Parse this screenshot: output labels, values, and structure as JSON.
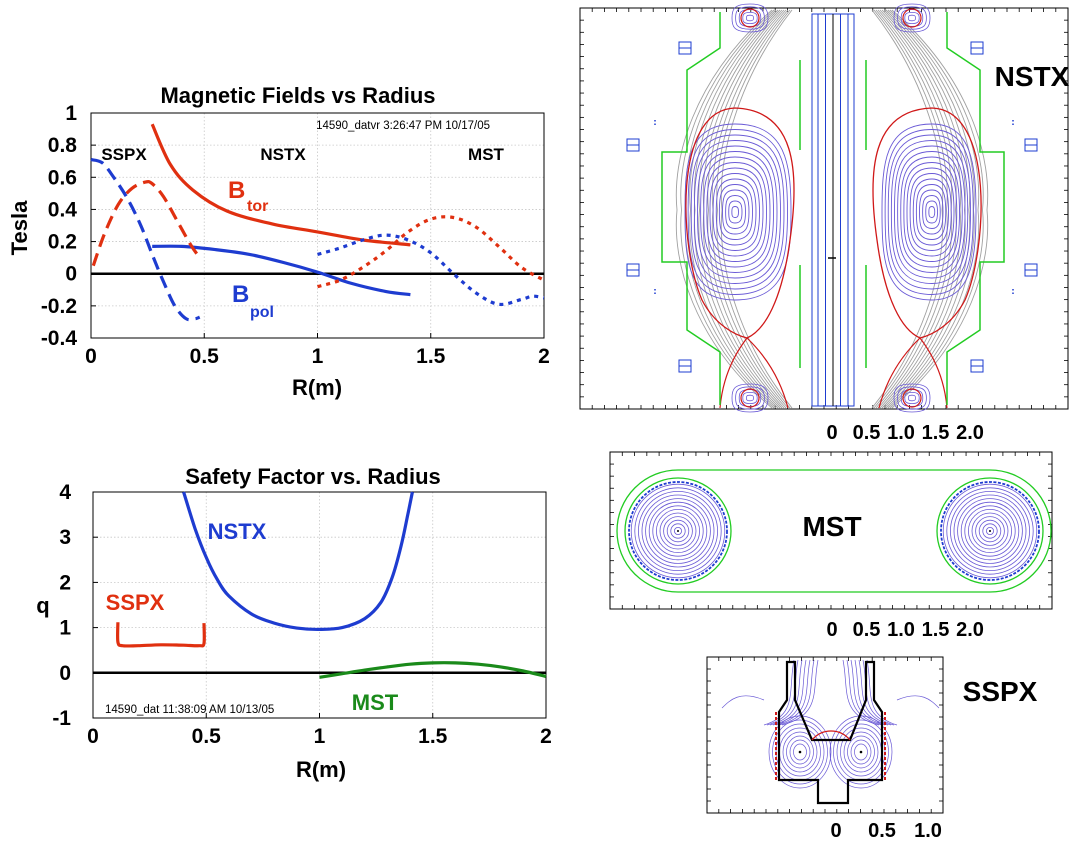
{
  "chart_data": [
    {
      "type": "line",
      "title": "Magnetic Fields vs Radius",
      "xlabel": "R(m)",
      "ylabel": "Tesla",
      "xlim": [
        0,
        2
      ],
      "ylim": [
        -0.4,
        1
      ],
      "x_ticks": [
        "0",
        "0.5",
        "1",
        "1.5",
        "2"
      ],
      "y_ticks": [
        "-0.4",
        "-0.2",
        "0",
        "0.2",
        "0.4",
        "0.6",
        "0.8",
        "1"
      ],
      "stamp": "14590_datvr 3:26:47 PM 10/17/05",
      "grid": true,
      "region_labels": [
        "SSPX",
        "NSTX",
        "MST"
      ],
      "btor_label": "B",
      "btor_sub": "tor",
      "bpol_label": "B",
      "bpol_sub": "pol",
      "series": [
        {
          "device": "NSTX",
          "field": "Btor",
          "style": "solid",
          "color": "#e03010",
          "x": [
            0.27,
            0.35,
            0.45,
            0.6,
            0.8,
            1.0,
            1.2,
            1.41
          ],
          "y": [
            0.93,
            0.68,
            0.52,
            0.39,
            0.31,
            0.26,
            0.21,
            0.18
          ]
        },
        {
          "device": "NSTX",
          "field": "Bpol",
          "style": "solid",
          "color": "#1e3cd0",
          "x": [
            0.27,
            0.4,
            0.55,
            0.7,
            0.85,
            1.0,
            1.15,
            1.3,
            1.41
          ],
          "y": [
            0.17,
            0.17,
            0.15,
            0.12,
            0.07,
            0.01,
            -0.06,
            -0.11,
            -0.13
          ]
        },
        {
          "device": "SSPX",
          "field": "Btor",
          "style": "dash",
          "color": "#e03010",
          "x": [
            0.01,
            0.06,
            0.12,
            0.18,
            0.24,
            0.27,
            0.32,
            0.38,
            0.44,
            0.48
          ],
          "y": [
            0.05,
            0.25,
            0.43,
            0.53,
            0.57,
            0.56,
            0.48,
            0.33,
            0.18,
            0.1
          ]
        },
        {
          "device": "SSPX",
          "field": "Bpol",
          "style": "dash",
          "color": "#1e3cd0",
          "x": [
            0.0,
            0.05,
            0.1,
            0.16,
            0.22,
            0.27,
            0.32,
            0.37,
            0.42,
            0.46,
            0.48
          ],
          "y": [
            0.71,
            0.69,
            0.6,
            0.47,
            0.3,
            0.12,
            -0.05,
            -0.2,
            -0.28,
            -0.28,
            -0.27
          ]
        },
        {
          "device": "MST",
          "field": "Btor",
          "style": "dot",
          "color": "#e03010",
          "x": [
            1.0,
            1.1,
            1.2,
            1.3,
            1.4,
            1.5,
            1.6,
            1.7,
            1.8,
            1.9,
            2.0
          ],
          "y": [
            -0.08,
            -0.04,
            0.04,
            0.14,
            0.26,
            0.34,
            0.35,
            0.29,
            0.17,
            0.04,
            -0.04
          ]
        },
        {
          "device": "MST",
          "field": "Bpol",
          "style": "dot",
          "color": "#1e3cd0",
          "x": [
            1.0,
            1.1,
            1.2,
            1.3,
            1.4,
            1.5,
            1.6,
            1.7,
            1.8,
            1.9,
            1.95,
            2.0
          ],
          "y": [
            0.12,
            0.16,
            0.21,
            0.24,
            0.21,
            0.13,
            0.0,
            -0.12,
            -0.19,
            -0.16,
            -0.14,
            -0.15
          ]
        }
      ]
    },
    {
      "type": "line",
      "title": "Safety Factor vs. Radius",
      "xlabel": "R(m)",
      "ylabel": "q",
      "xlim": [
        0,
        2
      ],
      "ylim": [
        -1,
        4
      ],
      "x_ticks": [
        "0",
        "0.5",
        "1",
        "1.5",
        "2"
      ],
      "y_ticks": [
        "-1",
        "0",
        "1",
        "2",
        "3",
        "4"
      ],
      "stamp": "14590_dat 11:38:09 AM 10/13/05",
      "grid": true,
      "series": [
        {
          "name": "NSTX",
          "color": "#1e3cd0",
          "x": [
            0.4,
            0.45,
            0.5,
            0.55,
            0.6,
            0.7,
            0.8,
            0.9,
            1.0,
            1.1,
            1.2,
            1.27,
            1.32,
            1.36,
            1.39,
            1.41
          ],
          "y": [
            4.0,
            3.2,
            2.55,
            2.05,
            1.7,
            1.3,
            1.1,
            0.99,
            0.96,
            1.0,
            1.2,
            1.55,
            2.1,
            2.8,
            3.5,
            4.0
          ]
        },
        {
          "name": "SSPX",
          "color": "#e03010",
          "x": [
            0.11,
            0.11,
            0.13,
            0.2,
            0.3,
            0.4,
            0.47,
            0.49,
            0.49
          ],
          "y": [
            1.12,
            0.68,
            0.6,
            0.6,
            0.62,
            0.61,
            0.6,
            0.65,
            1.1
          ]
        },
        {
          "name": "MST",
          "color": "#1a8a1a",
          "x": [
            1.0,
            1.1,
            1.2,
            1.3,
            1.4,
            1.5,
            1.6,
            1.7,
            1.8,
            1.9,
            2.0
          ],
          "y": [
            -0.1,
            -0.02,
            0.06,
            0.13,
            0.19,
            0.22,
            0.22,
            0.19,
            0.13,
            0.04,
            -0.08
          ]
        }
      ]
    }
  ],
  "panels": {
    "nstx": {
      "label": "NSTX",
      "ticks": [
        "0",
        "0.5",
        "1.0",
        "1.5",
        "2.0"
      ]
    },
    "mst": {
      "label": "MST",
      "ticks": [
        "0",
        "0.5",
        "1.0",
        "1.5",
        "2.0"
      ]
    },
    "sspx": {
      "label": "SSPX",
      "ticks": [
        "0",
        "0.5",
        "1.0"
      ]
    }
  },
  "colors": {
    "red": "#e03010",
    "blue": "#1e3cd0",
    "green": "#1a8a1a",
    "flux": "#6a5ad6",
    "wall": "#22cc22",
    "gray": "#a0a0a0"
  }
}
